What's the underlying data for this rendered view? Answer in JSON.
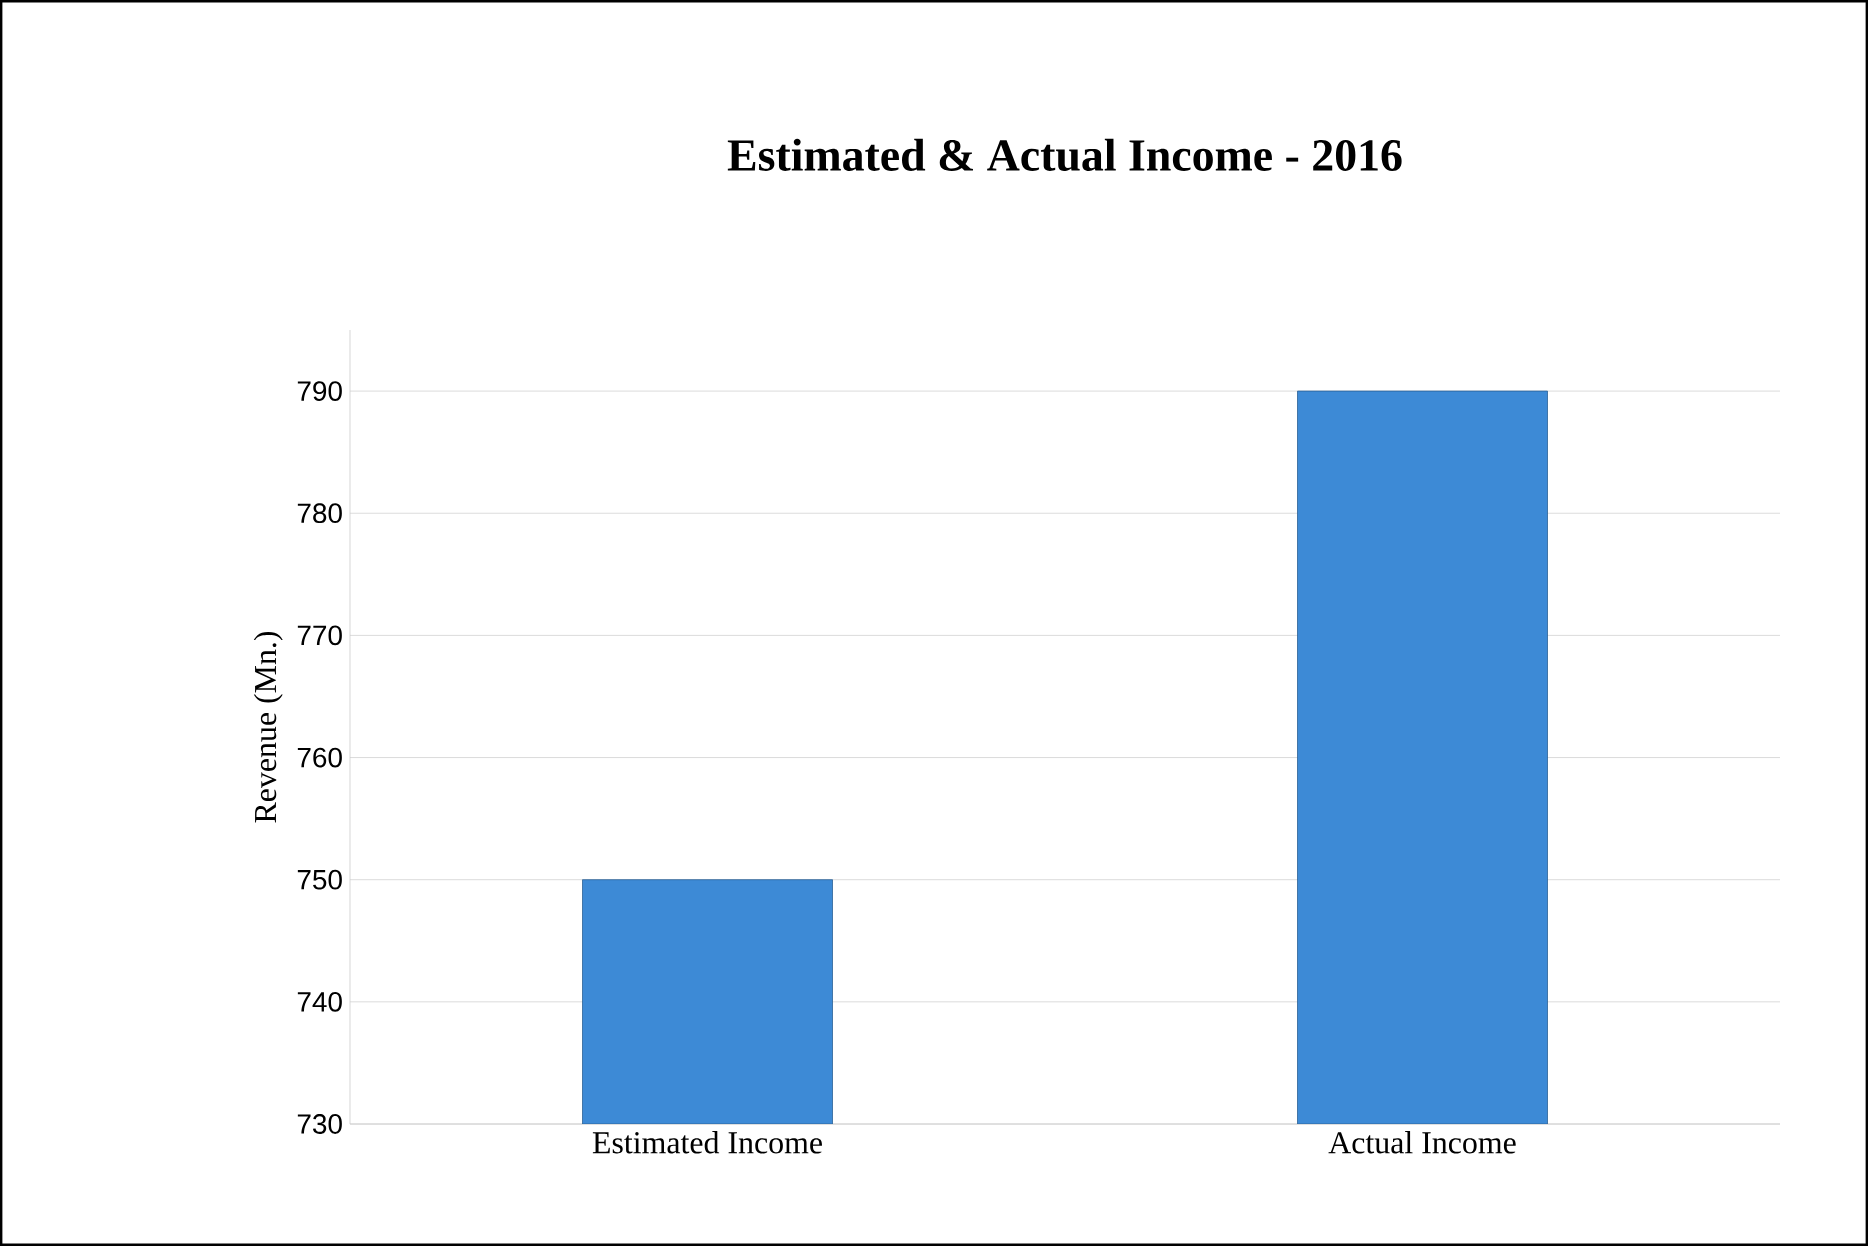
{
  "chart_data": {
    "type": "bar",
    "title": "Estimated & Actual Income - 2016",
    "ylabel": "Revenue (Mn.)",
    "categories": [
      "Estimated Income",
      "Actual Income"
    ],
    "values": [
      750,
      790
    ],
    "color": "#3d8ad6",
    "ylim": [
      730,
      795
    ],
    "yticks": [
      730,
      740,
      750,
      760,
      770,
      780,
      790
    ],
    "grid": "y"
  }
}
